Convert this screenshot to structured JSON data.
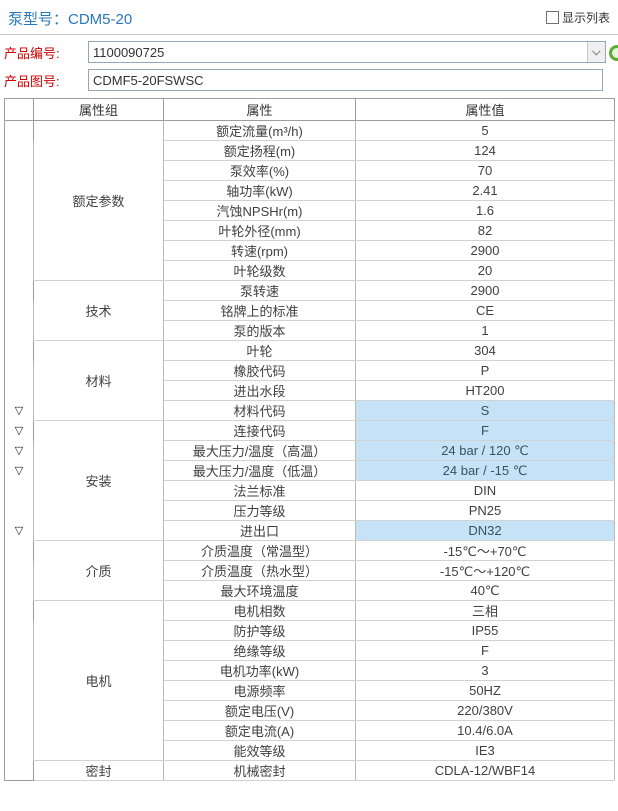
{
  "header": {
    "title_label": "泵型号：",
    "title_value": "CDM5-20",
    "show_list_label": "显示列表",
    "show_list_checked": false
  },
  "form": {
    "product_code_label": "产品编号:",
    "product_code_value": "1100090725",
    "product_drawing_label": "产品图号:",
    "product_drawing_value": "CDMF5-20FSWSC"
  },
  "table": {
    "headers": [
      "属性组",
      "属性",
      "属性值"
    ],
    "marker_icon": "▽",
    "groups": [
      {
        "name": "额定参数",
        "rows": [
          {
            "attr": "额定流量(m³/h)",
            "value": "5"
          },
          {
            "attr": "额定扬程(m)",
            "value": "124"
          },
          {
            "attr": "泵效率(%)",
            "value": "70"
          },
          {
            "attr": "轴功率(kW)",
            "value": "2.41"
          },
          {
            "attr": "汽蚀NPSHr(m)",
            "value": "1.6"
          },
          {
            "attr": "叶轮外径(mm)",
            "value": "82"
          },
          {
            "attr": "转速(rpm)",
            "value": "2900"
          },
          {
            "attr": "叶轮级数",
            "value": "20"
          }
        ]
      },
      {
        "name": "技术",
        "rows": [
          {
            "attr": "泵转速",
            "value": "2900"
          },
          {
            "attr": "铭牌上的标准",
            "value": "CE"
          },
          {
            "attr": "泵的版本",
            "value": "1"
          }
        ]
      },
      {
        "name": "材料",
        "rows": [
          {
            "attr": "叶轮",
            "value": "304"
          },
          {
            "attr": "橡胶代码",
            "value": "P"
          },
          {
            "attr": "进出水段",
            "value": "HT200"
          },
          {
            "attr": "材料代码",
            "value": "S",
            "highlighted": true,
            "marker": true
          }
        ]
      },
      {
        "name": "安装",
        "rows": [
          {
            "attr": "连接代码",
            "value": "F",
            "highlighted": true,
            "marker": true
          },
          {
            "attr": "最大压力/温度（高温）",
            "value": "24 bar / 120 ℃",
            "highlighted": true,
            "marker": true
          },
          {
            "attr": "最大压力/温度（低温）",
            "value": "24 bar / -15 ℃",
            "highlighted": true,
            "marker": true
          },
          {
            "attr": "法兰标准",
            "value": "DIN"
          },
          {
            "attr": "压力等级",
            "value": "PN25"
          },
          {
            "attr": "进出口",
            "value": "DN32",
            "highlighted": true,
            "marker": true
          }
        ]
      },
      {
        "name": "介质",
        "rows": [
          {
            "attr": "介质温度（常温型）",
            "value": "-15℃～+70℃"
          },
          {
            "attr": "介质温度（热水型）",
            "value": "-15℃～+120℃"
          },
          {
            "attr": "最大环境温度",
            "value": "40℃"
          }
        ]
      },
      {
        "name": "电机",
        "rows": [
          {
            "attr": "电机相数",
            "value": "三相"
          },
          {
            "attr": "防护等级",
            "value": "IP55"
          },
          {
            "attr": "绝缘等级",
            "value": "F"
          },
          {
            "attr": "电机功率(kW)",
            "value": "3"
          },
          {
            "attr": "电源频率",
            "value": "50HZ"
          },
          {
            "attr": "额定电压(V)",
            "value": "220/380V"
          },
          {
            "attr": "额定电流(A)",
            "value": "10.4/6.0A"
          },
          {
            "attr": "能效等级",
            "value": "IE3"
          }
        ]
      },
      {
        "name": "密封",
        "rows": [
          {
            "attr": "机械密封",
            "value": "CDLA-12/WBF14"
          }
        ]
      }
    ]
  },
  "colors": {
    "accent_blue": "#2878be",
    "label_red": "#cc0000",
    "highlight_blue": "#c5e2f7"
  }
}
